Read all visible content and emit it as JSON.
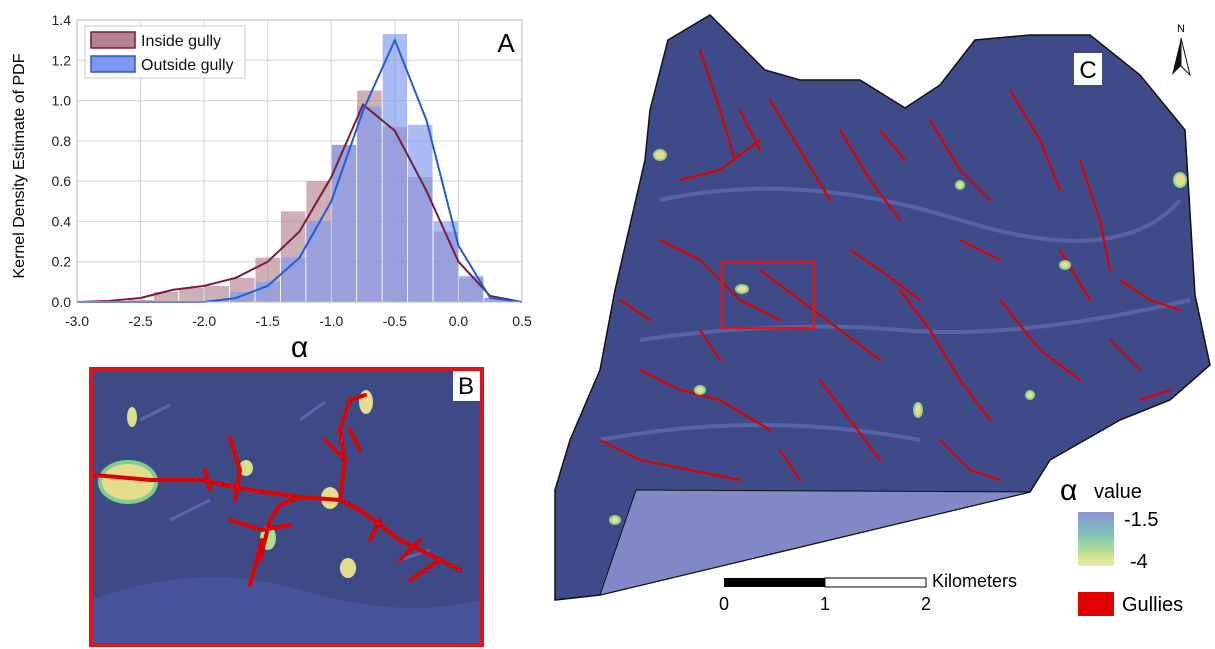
{
  "chart_data": {
    "type": "histogram",
    "panel_label": "A",
    "ylabel": "Kernel Density Estimate of PDF",
    "xlabel": "α",
    "bins": [
      -2.6,
      -2.4,
      -2.2,
      -2.0,
      -1.8,
      -1.6,
      -1.4,
      -1.2,
      -1.0,
      -0.8,
      -0.6,
      -0.4,
      -0.2,
      0.0,
      0.2,
      0.4
    ],
    "series": [
      {
        "name": "Inside gully",
        "color": "#b38391",
        "line_color": "#7a1c3c",
        "values": [
          0.01,
          0.05,
          0.07,
          0.08,
          0.12,
          0.22,
          0.45,
          0.6,
          0.78,
          1.05,
          0.87,
          0.62,
          0.35,
          0.12,
          0.02
        ],
        "kde_x": [
          -3.0,
          -2.75,
          -2.5,
          -2.25,
          -2.0,
          -1.75,
          -1.5,
          -1.25,
          -1.0,
          -0.75,
          -0.5,
          -0.25,
          0.0,
          0.25,
          0.5
        ],
        "kde_y": [
          0.0,
          0.005,
          0.02,
          0.06,
          0.08,
          0.12,
          0.2,
          0.35,
          0.62,
          0.98,
          0.85,
          0.55,
          0.2,
          0.03,
          0.0
        ]
      },
      {
        "name": "Outside gully",
        "color": "#7d98ee",
        "line_color": "#1e5fd2",
        "values": [
          0.0,
          0.0,
          0.0,
          0.01,
          0.05,
          0.1,
          0.22,
          0.4,
          0.78,
          0.97,
          1.33,
          0.88,
          0.4,
          0.13,
          0.02
        ],
        "kde_x": [
          -3.0,
          -2.75,
          -2.5,
          -2.25,
          -2.0,
          -1.75,
          -1.5,
          -1.25,
          -1.0,
          -0.75,
          -0.5,
          -0.25,
          0.0,
          0.25,
          0.5
        ],
        "kde_y": [
          0.0,
          0.0,
          0.0,
          0.0,
          0.0,
          0.02,
          0.08,
          0.22,
          0.5,
          0.95,
          1.3,
          0.9,
          0.28,
          0.02,
          0.0
        ]
      }
    ],
    "xlim": [
      -3.0,
      0.5
    ],
    "xticks": [
      {
        "value": -3.0,
        "label": "-3.0"
      },
      -2.5,
      {
        "value": -2.0,
        "label": "-2.0"
      },
      -1.5,
      {
        "value": -1.0,
        "label": "-1.0"
      },
      -0.5,
      {
        "value": 0.0,
        "label": "0.0"
      },
      0.5
    ],
    "ylim": [
      0,
      1.4
    ],
    "yticks": [
      {
        "value": 0,
        "label": "0.0"
      },
      0.2,
      0.4,
      0.6,
      0.8,
      {
        "value": 1.0,
        "label": "1.0"
      },
      1.2,
      1.4
    ],
    "grid": true,
    "legend": "upper left"
  },
  "map": {
    "panel_b_label": "B",
    "panel_c_label": "C",
    "north": "N",
    "scale": {
      "unit": "Kilometers",
      "labels": [
        "0",
        "1",
        "2"
      ]
    },
    "legend": {
      "symbol": "α",
      "title": "value",
      "high": "-1.5",
      "low": "-4",
      "gullies": "Gullies"
    }
  }
}
